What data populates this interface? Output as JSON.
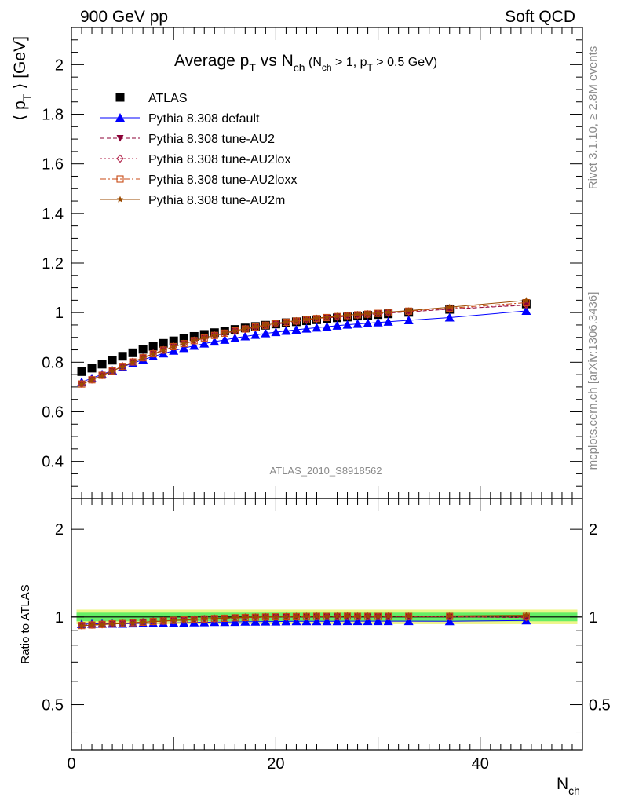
{
  "header": {
    "left": "900 GeV pp",
    "right": "Soft QCD"
  },
  "side_text": {
    "rivet": "Rivet 3.1.10, ≥ 2.8M events",
    "mcplots": "mcplots.cern.ch [arXiv:1306.3436]"
  },
  "chart_data": [
    {
      "type": "scatter",
      "title": "Average p_T vs N_ch (N_ch > 1, p_T > 0.5 GeV)",
      "title_parts": {
        "main": "Average p",
        "sub1": "T",
        "vs": " vs N",
        "sub2": "ch",
        "cut": " (N",
        "cut_sub1": "ch",
        "cut_mid": " > 1, p",
        "cut_sub2": "T",
        "cut_end": " > 0.5 GeV)"
      },
      "ylabel": "⟨ p_T ⟩ [GeV]",
      "ylabel_parts": {
        "open": "⟨ p",
        "sub": "T",
        "close": " ⟩ [GeV]"
      },
      "xlabel": "N_ch",
      "xlabel_parts": {
        "main": "N",
        "sub": "ch"
      },
      "xlim": [
        0,
        50
      ],
      "ylim": [
        0.25,
        2.15
      ],
      "xticks": [
        0,
        20,
        40
      ],
      "yticks": [
        "0.4",
        "0.6",
        "0.8",
        "1",
        "1.2",
        "1.4",
        "1.6",
        "1.8",
        "2"
      ],
      "watermark": "ATLAS_2010_S8918562",
      "legend_position": "top-left",
      "x": [
        1,
        2,
        3,
        4,
        5,
        6,
        7,
        8,
        9,
        10,
        11,
        12,
        13,
        14,
        15,
        16,
        17,
        18,
        19,
        20,
        21,
        22,
        23,
        24,
        25,
        26,
        27,
        28,
        29,
        30,
        31,
        33,
        37,
        44.5
      ],
      "series": [
        {
          "name": "ATLAS",
          "color": "#000000",
          "marker": "square",
          "values": [
            0.762,
            0.776,
            0.792,
            0.808,
            0.824,
            0.838,
            0.852,
            0.864,
            0.876,
            0.886,
            0.896,
            0.904,
            0.912,
            0.919,
            0.926,
            0.932,
            0.938,
            0.944,
            0.949,
            0.954,
            0.959,
            0.963,
            0.967,
            0.971,
            0.975,
            0.979,
            0.982,
            0.986,
            0.989,
            0.992,
            0.995,
            1.001,
            1.013,
            1.035
          ]
        },
        {
          "name": "Pythia 8.308 default",
          "color": "#0000ff",
          "marker": "triangle",
          "line": "solid",
          "values": [
            0.72,
            0.735,
            0.751,
            0.766,
            0.781,
            0.796,
            0.81,
            0.823,
            0.835,
            0.846,
            0.857,
            0.866,
            0.875,
            0.883,
            0.89,
            0.897,
            0.904,
            0.91,
            0.916,
            0.921,
            0.926,
            0.931,
            0.935,
            0.939,
            0.943,
            0.947,
            0.951,
            0.954,
            0.957,
            0.96,
            0.963,
            0.969,
            0.98,
            1.007
          ]
        },
        {
          "name": "Pythia 8.308 tune-AU2",
          "color": "#8b0036",
          "marker": "triangle-down",
          "line": "dashed",
          "values": [
            0.712,
            0.729,
            0.747,
            0.765,
            0.783,
            0.801,
            0.818,
            0.834,
            0.848,
            0.862,
            0.874,
            0.886,
            0.897,
            0.907,
            0.916,
            0.925,
            0.933,
            0.94,
            0.947,
            0.953,
            0.959,
            0.964,
            0.969,
            0.974,
            0.978,
            0.982,
            0.986,
            0.989,
            0.992,
            0.995,
            0.998,
            1.003,
            1.014,
            1.03
          ]
        },
        {
          "name": "Pythia 8.308 tune-AU2lox",
          "color": "#b2224a",
          "marker": "diamond-open",
          "line": "dotted",
          "values": [
            0.713,
            0.73,
            0.748,
            0.766,
            0.784,
            0.802,
            0.819,
            0.835,
            0.849,
            0.863,
            0.875,
            0.887,
            0.898,
            0.908,
            0.917,
            0.926,
            0.934,
            0.941,
            0.948,
            0.954,
            0.96,
            0.965,
            0.97,
            0.975,
            0.979,
            0.983,
            0.987,
            0.99,
            0.993,
            0.996,
            0.999,
            1.004,
            1.015,
            1.032
          ]
        },
        {
          "name": "Pythia 8.308 tune-AU2loxx",
          "color": "#c84a14",
          "marker": "square-open",
          "line": "dashdot",
          "values": [
            0.712,
            0.729,
            0.747,
            0.765,
            0.783,
            0.801,
            0.818,
            0.834,
            0.849,
            0.863,
            0.875,
            0.887,
            0.898,
            0.908,
            0.917,
            0.926,
            0.934,
            0.942,
            0.949,
            0.955,
            0.961,
            0.966,
            0.971,
            0.976,
            0.98,
            0.984,
            0.988,
            0.991,
            0.994,
            0.997,
            1.0,
            1.006,
            1.018,
            1.04
          ]
        },
        {
          "name": "Pythia 8.308 tune-AU2m",
          "color": "#9b4a00",
          "marker": "star",
          "line": "solid",
          "values": [
            0.711,
            0.728,
            0.746,
            0.764,
            0.782,
            0.8,
            0.817,
            0.833,
            0.848,
            0.862,
            0.875,
            0.887,
            0.898,
            0.908,
            0.918,
            0.927,
            0.935,
            0.943,
            0.95,
            0.956,
            0.962,
            0.968,
            0.973,
            0.978,
            0.982,
            0.986,
            0.99,
            0.993,
            0.996,
            0.999,
            1.002,
            1.008,
            1.022,
            1.049
          ]
        }
      ]
    },
    {
      "type": "scatter",
      "ylabel": "Ratio to ATLAS",
      "xlim": [
        0,
        50
      ],
      "ylim": [
        0.35,
        2.55
      ],
      "yscale": "log",
      "yticks_left": [
        "0.5",
        "1",
        "2"
      ],
      "yticks_right": [
        "0.5",
        "1",
        "2"
      ],
      "band_colors": {
        "inner": "#66ee66",
        "outer": "#eef58a"
      },
      "x": [
        1,
        2,
        3,
        4,
        5,
        6,
        7,
        8,
        9,
        10,
        11,
        12,
        13,
        14,
        15,
        16,
        17,
        18,
        19,
        20,
        21,
        22,
        23,
        24,
        25,
        26,
        27,
        28,
        29,
        30,
        31,
        33,
        37,
        44.5
      ],
      "series": [
        {
          "name": "Pythia 8.308 default",
          "color": "#0000ff",
          "marker": "triangle",
          "line": "solid",
          "values": [
            0.945,
            0.947,
            0.948,
            0.948,
            0.948,
            0.95,
            0.951,
            0.953,
            0.953,
            0.955,
            0.956,
            0.958,
            0.959,
            0.961,
            0.961,
            0.962,
            0.964,
            0.964,
            0.965,
            0.965,
            0.966,
            0.967,
            0.967,
            0.967,
            0.967,
            0.967,
            0.968,
            0.968,
            0.968,
            0.968,
            0.968,
            0.968,
            0.967,
            0.973
          ]
        },
        {
          "name": "Pythia 8.308 tune-AU2",
          "color": "#8b0036",
          "marker": "triangle-down",
          "line": "dashed",
          "values": [
            0.935,
            0.939,
            0.943,
            0.947,
            0.95,
            0.956,
            0.96,
            0.965,
            0.968,
            0.973,
            0.975,
            0.98,
            0.984,
            0.987,
            0.989,
            0.993,
            0.995,
            0.996,
            0.998,
            0.999,
            1.0,
            1.001,
            1.002,
            1.003,
            1.003,
            1.003,
            1.004,
            1.003,
            1.003,
            1.003,
            1.003,
            1.002,
            1.001,
            0.995
          ]
        },
        {
          "name": "Pythia 8.308 tune-AU2lox",
          "color": "#b2224a",
          "marker": "diamond-open",
          "line": "dotted",
          "values": [
            0.936,
            0.941,
            0.944,
            0.948,
            0.951,
            0.957,
            0.961,
            0.966,
            0.969,
            0.974,
            0.977,
            0.981,
            0.985,
            0.988,
            0.99,
            0.994,
            0.996,
            0.997,
            0.999,
            1.0,
            1.001,
            1.002,
            1.003,
            1.004,
            1.004,
            1.004,
            1.005,
            1.004,
            1.004,
            1.004,
            1.004,
            1.003,
            1.002,
            0.997
          ]
        },
        {
          "name": "Pythia 8.308 tune-AU2loxx",
          "color": "#c84a14",
          "marker": "square-open",
          "line": "dashdot",
          "values": [
            0.935,
            0.939,
            0.943,
            0.947,
            0.95,
            0.956,
            0.96,
            0.965,
            0.969,
            0.974,
            0.977,
            0.981,
            0.985,
            0.988,
            0.99,
            0.994,
            0.996,
            0.998,
            1.0,
            1.001,
            1.002,
            1.003,
            1.004,
            1.005,
            1.005,
            1.005,
            1.006,
            1.005,
            1.005,
            1.005,
            1.005,
            1.005,
            1.005,
            1.005
          ]
        },
        {
          "name": "Pythia 8.308 tune-AU2m",
          "color": "#9b4a00",
          "marker": "star",
          "line": "solid",
          "values": [
            0.933,
            0.938,
            0.942,
            0.946,
            0.949,
            0.955,
            0.959,
            0.964,
            0.968,
            0.973,
            0.977,
            0.981,
            0.985,
            0.988,
            0.991,
            0.995,
            0.997,
            0.999,
            1.001,
            1.002,
            1.003,
            1.005,
            1.006,
            1.007,
            1.007,
            1.007,
            1.008,
            1.007,
            1.007,
            1.007,
            1.007,
            1.007,
            1.009,
            1.014
          ]
        }
      ]
    }
  ]
}
